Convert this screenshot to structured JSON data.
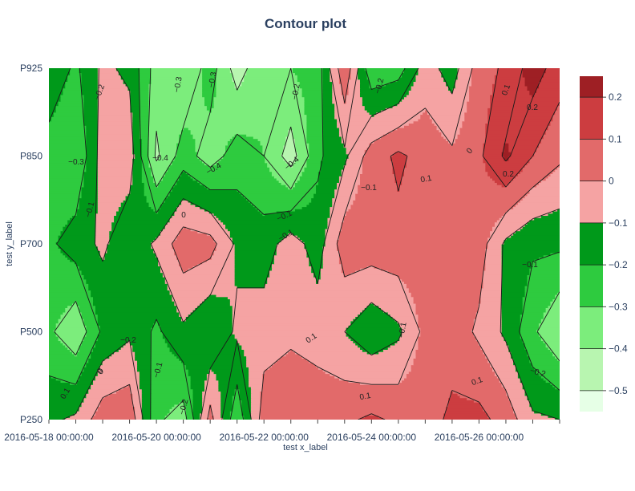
{
  "chart_data": {
    "type": "contour",
    "title": "Contour plot",
    "xlabel": "test x_label",
    "ylabel": "test y_label",
    "x": [
      "2016-05-18 00:00:00",
      "2016-05-18 12:00:00",
      "2016-05-19 00:00:00",
      "2016-05-19 12:00:00",
      "2016-05-20 00:00:00",
      "2016-05-20 12:00:00",
      "2016-05-21 00:00:00",
      "2016-05-21 12:00:00",
      "2016-05-22 00:00:00",
      "2016-05-22 12:00:00",
      "2016-05-23 00:00:00",
      "2016-05-23 12:00:00",
      "2016-05-24 00:00:00",
      "2016-05-24 12:00:00",
      "2016-05-25 00:00:00",
      "2016-05-25 12:00:00",
      "2016-05-26 00:00:00",
      "2016-05-26 12:00:00",
      "2016-05-27 00:00:00",
      "2016-05-27 12:00:00"
    ],
    "x_tick_labels": [
      "2016-05-18 00:00:00",
      "2016-05-20 00:00:00",
      "2016-05-22 00:00:00",
      "2016-05-24 00:00:00",
      "2016-05-26 00:00:00"
    ],
    "y": [
      "P250",
      "P500",
      "P700",
      "P850",
      "P925"
    ],
    "z": [
      [
        -0.12,
        -0.08,
        0.06,
        0.08,
        -0.28,
        -0.35,
        0.04,
        -0.28,
        0.06,
        0.08,
        0.06,
        0.08,
        0.12,
        0.08,
        0.06,
        0.12,
        0.13,
        0.06,
        -0.08,
        -0.1
      ],
      [
        -0.28,
        -0.38,
        -0.18,
        -0.12,
        -0.22,
        -0.12,
        -0.2,
        -0.08,
        -0.05,
        -0.02,
        -0.04,
        -0.1,
        -0.18,
        -0.12,
        0.03,
        0.06,
        -0.02,
        -0.12,
        -0.28,
        -0.4
      ],
      [
        -0.22,
        -0.15,
        -0.08,
        -0.18,
        -0.08,
        0.06,
        0.04,
        -0.12,
        -0.15,
        -0.05,
        -0.15,
        0.06,
        0.06,
        0.07,
        0.06,
        0.03,
        0.05,
        -0.12,
        -0.18,
        -0.18
      ],
      [
        -0.25,
        -0.3,
        -0.05,
        -0.04,
        -0.42,
        -0.25,
        -0.35,
        -0.25,
        -0.3,
        -0.45,
        -0.22,
        -0.12,
        0.05,
        0.12,
        0.06,
        0.02,
        0.08,
        0.22,
        0.1,
        0.02
      ],
      [
        -0.12,
        -0.22,
        -0.08,
        -0.12,
        -0.35,
        -0.4,
        -0.25,
        -0.45,
        -0.32,
        -0.3,
        -0.25,
        0.08,
        -0.28,
        -0.25,
        -0.05,
        -0.15,
        0.05,
        0.12,
        0.25,
        0.15
      ]
    ],
    "contour_levels": [
      -0.5,
      -0.4,
      -0.3,
      -0.2,
      -0.1,
      0,
      0.1,
      0.2
    ],
    "colorscale": [
      "#e6ffe6",
      "#b8f5b0",
      "#7ced7c",
      "#2ecb3f",
      "#00991a",
      "#f5a3a3",
      "#e26a6a",
      "#cc3d40",
      "#9e1f24"
    ],
    "colorbar": {
      "range": [
        -0.55,
        0.25
      ],
      "tick_values": [
        0.2,
        0.1,
        0,
        -0.1,
        -0.2,
        -0.3,
        -0.4,
        -0.5
      ],
      "tick_labels": [
        "0.2",
        "0.1",
        "0",
        "−0.1",
        "−0.2",
        "−0.3",
        "−0.4",
        "−0.5"
      ]
    },
    "contour_line_labels": [
      "−0.2",
      "0.1",
      "−0.3",
      "−0.1",
      "0",
      "−0.4",
      "−0.3",
      "−0.4",
      "−0.3",
      "−0.1",
      "−0.2",
      "−0.1",
      "0.1",
      "0",
      "0.2",
      "0.1",
      "0.2",
      "−0.1",
      "−0.1",
      "−0.1",
      "−0.2",
      "−0.1",
      "0",
      "0",
      "−0.2",
      "0.1",
      "0.1",
      "−0.2",
      "−0.4",
      "0.1",
      "−0.2"
    ],
    "grid": false,
    "legend": "colorbar-right"
  }
}
